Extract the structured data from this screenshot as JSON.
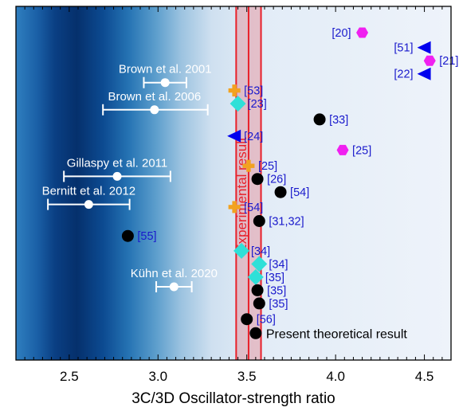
{
  "chart_data": {
    "type": "scatter",
    "xlabel": "3C/3D Oscillator-strength ratio",
    "xlim": [
      2.2,
      4.65
    ],
    "x_ticks": [
      "2.5",
      "3.0",
      "3.5",
      "4.0",
      "4.5"
    ],
    "x_tick_values": [
      2.5,
      3.0,
      3.5,
      4.0,
      4.5
    ],
    "grid": false,
    "colors": {
      "experimental_band": "#e8202a",
      "black": "#000000",
      "cyan": "#2fe0d8",
      "orange": "#f2a220",
      "magenta": "#f020f0",
      "blue": "#0000ee",
      "label_blue": "#1a1acc",
      "white": "#ffffff"
    },
    "experimental_result": {
      "label": "Experimental result",
      "center": 3.51,
      "lower": 3.44,
      "upper": 3.58
    },
    "present_result_label": "Present theoretical result",
    "experiments": [
      {
        "label": "Brown et al. 2001",
        "value": 3.04,
        "err_low": 2.92,
        "err_high": 3.16,
        "row": 2.85
      },
      {
        "label": "Brown et al. 2006",
        "value": 2.98,
        "err_low": 2.69,
        "err_high": 3.28,
        "row": 4.4
      },
      {
        "label": "Gillaspy et al. 2011",
        "value": 2.77,
        "err_low": 2.47,
        "err_high": 3.07,
        "row": 8.2
      },
      {
        "label": "Bernitt et al. 2012",
        "value": 2.61,
        "err_low": 2.38,
        "err_high": 2.84,
        "row": 9.8
      },
      {
        "label": "Kühn et al. 2020",
        "value": 3.09,
        "err_low": 2.99,
        "err_high": 3.19,
        "row": 14.5
      }
    ],
    "theory_points": [
      {
        "label": "[20]",
        "x": 4.15,
        "marker": "hexagon",
        "color": "magenta",
        "row": 0
      },
      {
        "label": "[51]",
        "x": 4.5,
        "marker": "triangle-left",
        "color": "blue",
        "row": 0.85
      },
      {
        "label": "[21]",
        "x": 4.53,
        "marker": "hexagon",
        "color": "magenta",
        "row": 1.6
      },
      {
        "label": "[22]",
        "x": 4.5,
        "marker": "triangle-left",
        "color": "blue",
        "row": 2.35
      },
      {
        "label": "[53]",
        "x": 3.43,
        "marker": "cross",
        "color": "orange",
        "row": 3.3
      },
      {
        "label": "[23]",
        "x": 3.45,
        "marker": "diamond",
        "color": "cyan",
        "row": 4.05
      },
      {
        "label": "[33]",
        "x": 3.91,
        "marker": "circle",
        "color": "black",
        "row": 4.95
      },
      {
        "label": "[24]",
        "x": 3.43,
        "marker": "triangle-left",
        "color": "blue",
        "row": 5.9
      },
      {
        "label": "[25]",
        "x": 4.04,
        "marker": "hexagon",
        "color": "magenta",
        "row": 6.7
      },
      {
        "label": "[25]",
        "x": 3.51,
        "marker": "cross",
        "color": "orange",
        "row": 7.6
      },
      {
        "label": "[26]",
        "x": 3.56,
        "marker": "circle",
        "color": "black",
        "row": 8.35
      },
      {
        "label": "[54]",
        "x": 3.69,
        "marker": "circle",
        "color": "black",
        "row": 9.1
      },
      {
        "label": "[54]",
        "x": 3.43,
        "marker": "cross",
        "color": "orange",
        "row": 9.95
      },
      {
        "label": "[31,32]",
        "x": 3.57,
        "marker": "circle",
        "color": "black",
        "row": 10.75
      },
      {
        "label": "[55]",
        "x": 2.83,
        "marker": "circle",
        "color": "black",
        "row": 11.6
      },
      {
        "label": "[34]",
        "x": 3.47,
        "marker": "diamond",
        "color": "cyan",
        "row": 12.45
      },
      {
        "label": "[34]",
        "x": 3.57,
        "marker": "diamond",
        "color": "cyan",
        "row": 13.2
      },
      {
        "label": "[35]",
        "x": 3.55,
        "marker": "diamond",
        "color": "cyan",
        "row": 13.95
      },
      {
        "label": "[35]",
        "x": 3.56,
        "marker": "circle",
        "color": "black",
        "row": 14.7
      },
      {
        "label": "[35]",
        "x": 3.57,
        "marker": "circle",
        "color": "black",
        "row": 15.45
      },
      {
        "label": "[56]",
        "x": 3.5,
        "marker": "circle",
        "color": "black",
        "row": 16.35
      },
      {
        "label": "",
        "x": 3.55,
        "marker": "circle",
        "color": "black",
        "row": 17.15,
        "present": true
      }
    ]
  }
}
